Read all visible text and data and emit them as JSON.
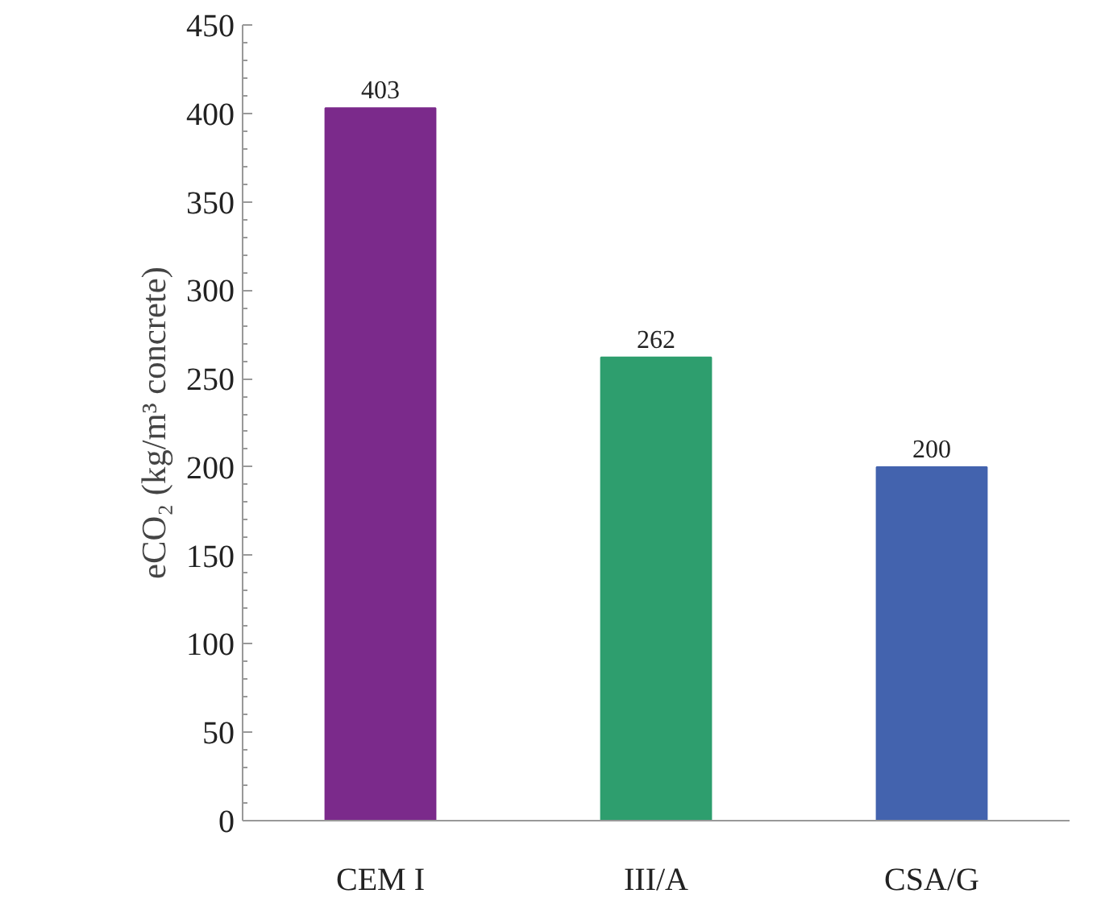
{
  "chart_data": {
    "type": "bar",
    "ylabel": "eCO₂ (kg/m³ concrete)",
    "categories": [
      "CEM I",
      "III/A",
      "CSA/G"
    ],
    "values": [
      403,
      262,
      200
    ],
    "colors": [
      "#7b2a8b",
      "#2e9e6e",
      "#4363ae"
    ],
    "ylim": [
      0,
      450
    ],
    "yticks": [
      0,
      50,
      100,
      150,
      200,
      250,
      300,
      350,
      400,
      450
    ],
    "data_labels": true,
    "grid": false
  }
}
